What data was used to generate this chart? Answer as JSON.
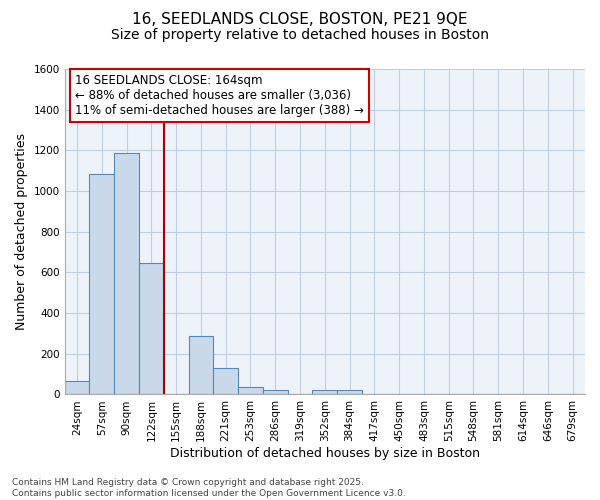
{
  "title1": "16, SEEDLANDS CLOSE, BOSTON, PE21 9QE",
  "title2": "Size of property relative to detached houses in Boston",
  "xlabel": "Distribution of detached houses by size in Boston",
  "ylabel": "Number of detached properties",
  "bin_labels": [
    "24sqm",
    "57sqm",
    "90sqm",
    "122sqm",
    "155sqm",
    "188sqm",
    "221sqm",
    "253sqm",
    "286sqm",
    "319sqm",
    "352sqm",
    "384sqm",
    "417sqm",
    "450sqm",
    "483sqm",
    "515sqm",
    "548sqm",
    "581sqm",
    "614sqm",
    "646sqm",
    "679sqm"
  ],
  "bar_values": [
    65,
    1085,
    1185,
    645,
    0,
    285,
    130,
    38,
    22,
    0,
    22,
    22,
    0,
    0,
    0,
    0,
    0,
    0,
    0,
    0,
    0
  ],
  "bar_color": "#c9d9ea",
  "bar_edge_color": "#5588bb",
  "vline_x_idx": 4,
  "vline_color": "#aa0000",
  "annotation_line1": "16 SEEDLANDS CLOSE: 164sqm",
  "annotation_line2": "← 88% of detached houses are smaller (3,036)",
  "annotation_line3": "11% of semi-detached houses are larger (388) →",
  "annotation_box_color": "white",
  "annotation_box_edge": "#cc0000",
  "ylim": [
    0,
    1600
  ],
  "yticks": [
    0,
    200,
    400,
    600,
    800,
    1000,
    1200,
    1400,
    1600
  ],
  "grid_color": "#c0cfe0",
  "bg_color": "#e8eef8",
  "plot_bg_color": "#eef3fa",
  "footnote": "Contains HM Land Registry data © Crown copyright and database right 2025.\nContains public sector information licensed under the Open Government Licence v3.0.",
  "title_fontsize": 11,
  "subtitle_fontsize": 10,
  "label_fontsize": 9,
  "tick_fontsize": 7.5,
  "footnote_fontsize": 6.5,
  "annot_fontsize": 8.5
}
